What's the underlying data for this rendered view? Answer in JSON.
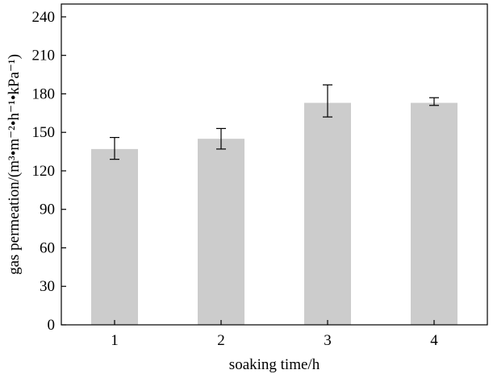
{
  "chart_data": {
    "type": "bar",
    "title": "",
    "xlabel": "soaking time/h",
    "ylabel": "gas permeation/(m³•m⁻²•h⁻¹•kPa⁻¹)",
    "categories": [
      "1",
      "2",
      "3",
      "4"
    ],
    "values": [
      137,
      145,
      173,
      173
    ],
    "error_low": [
      129,
      137,
      162,
      171
    ],
    "error_high": [
      146,
      153,
      187,
      177
    ],
    "ylim": [
      0,
      250
    ],
    "yticks": [
      0,
      30,
      60,
      90,
      120,
      150,
      180,
      210,
      240
    ],
    "grid": false,
    "bar_color": "#cccccc"
  }
}
